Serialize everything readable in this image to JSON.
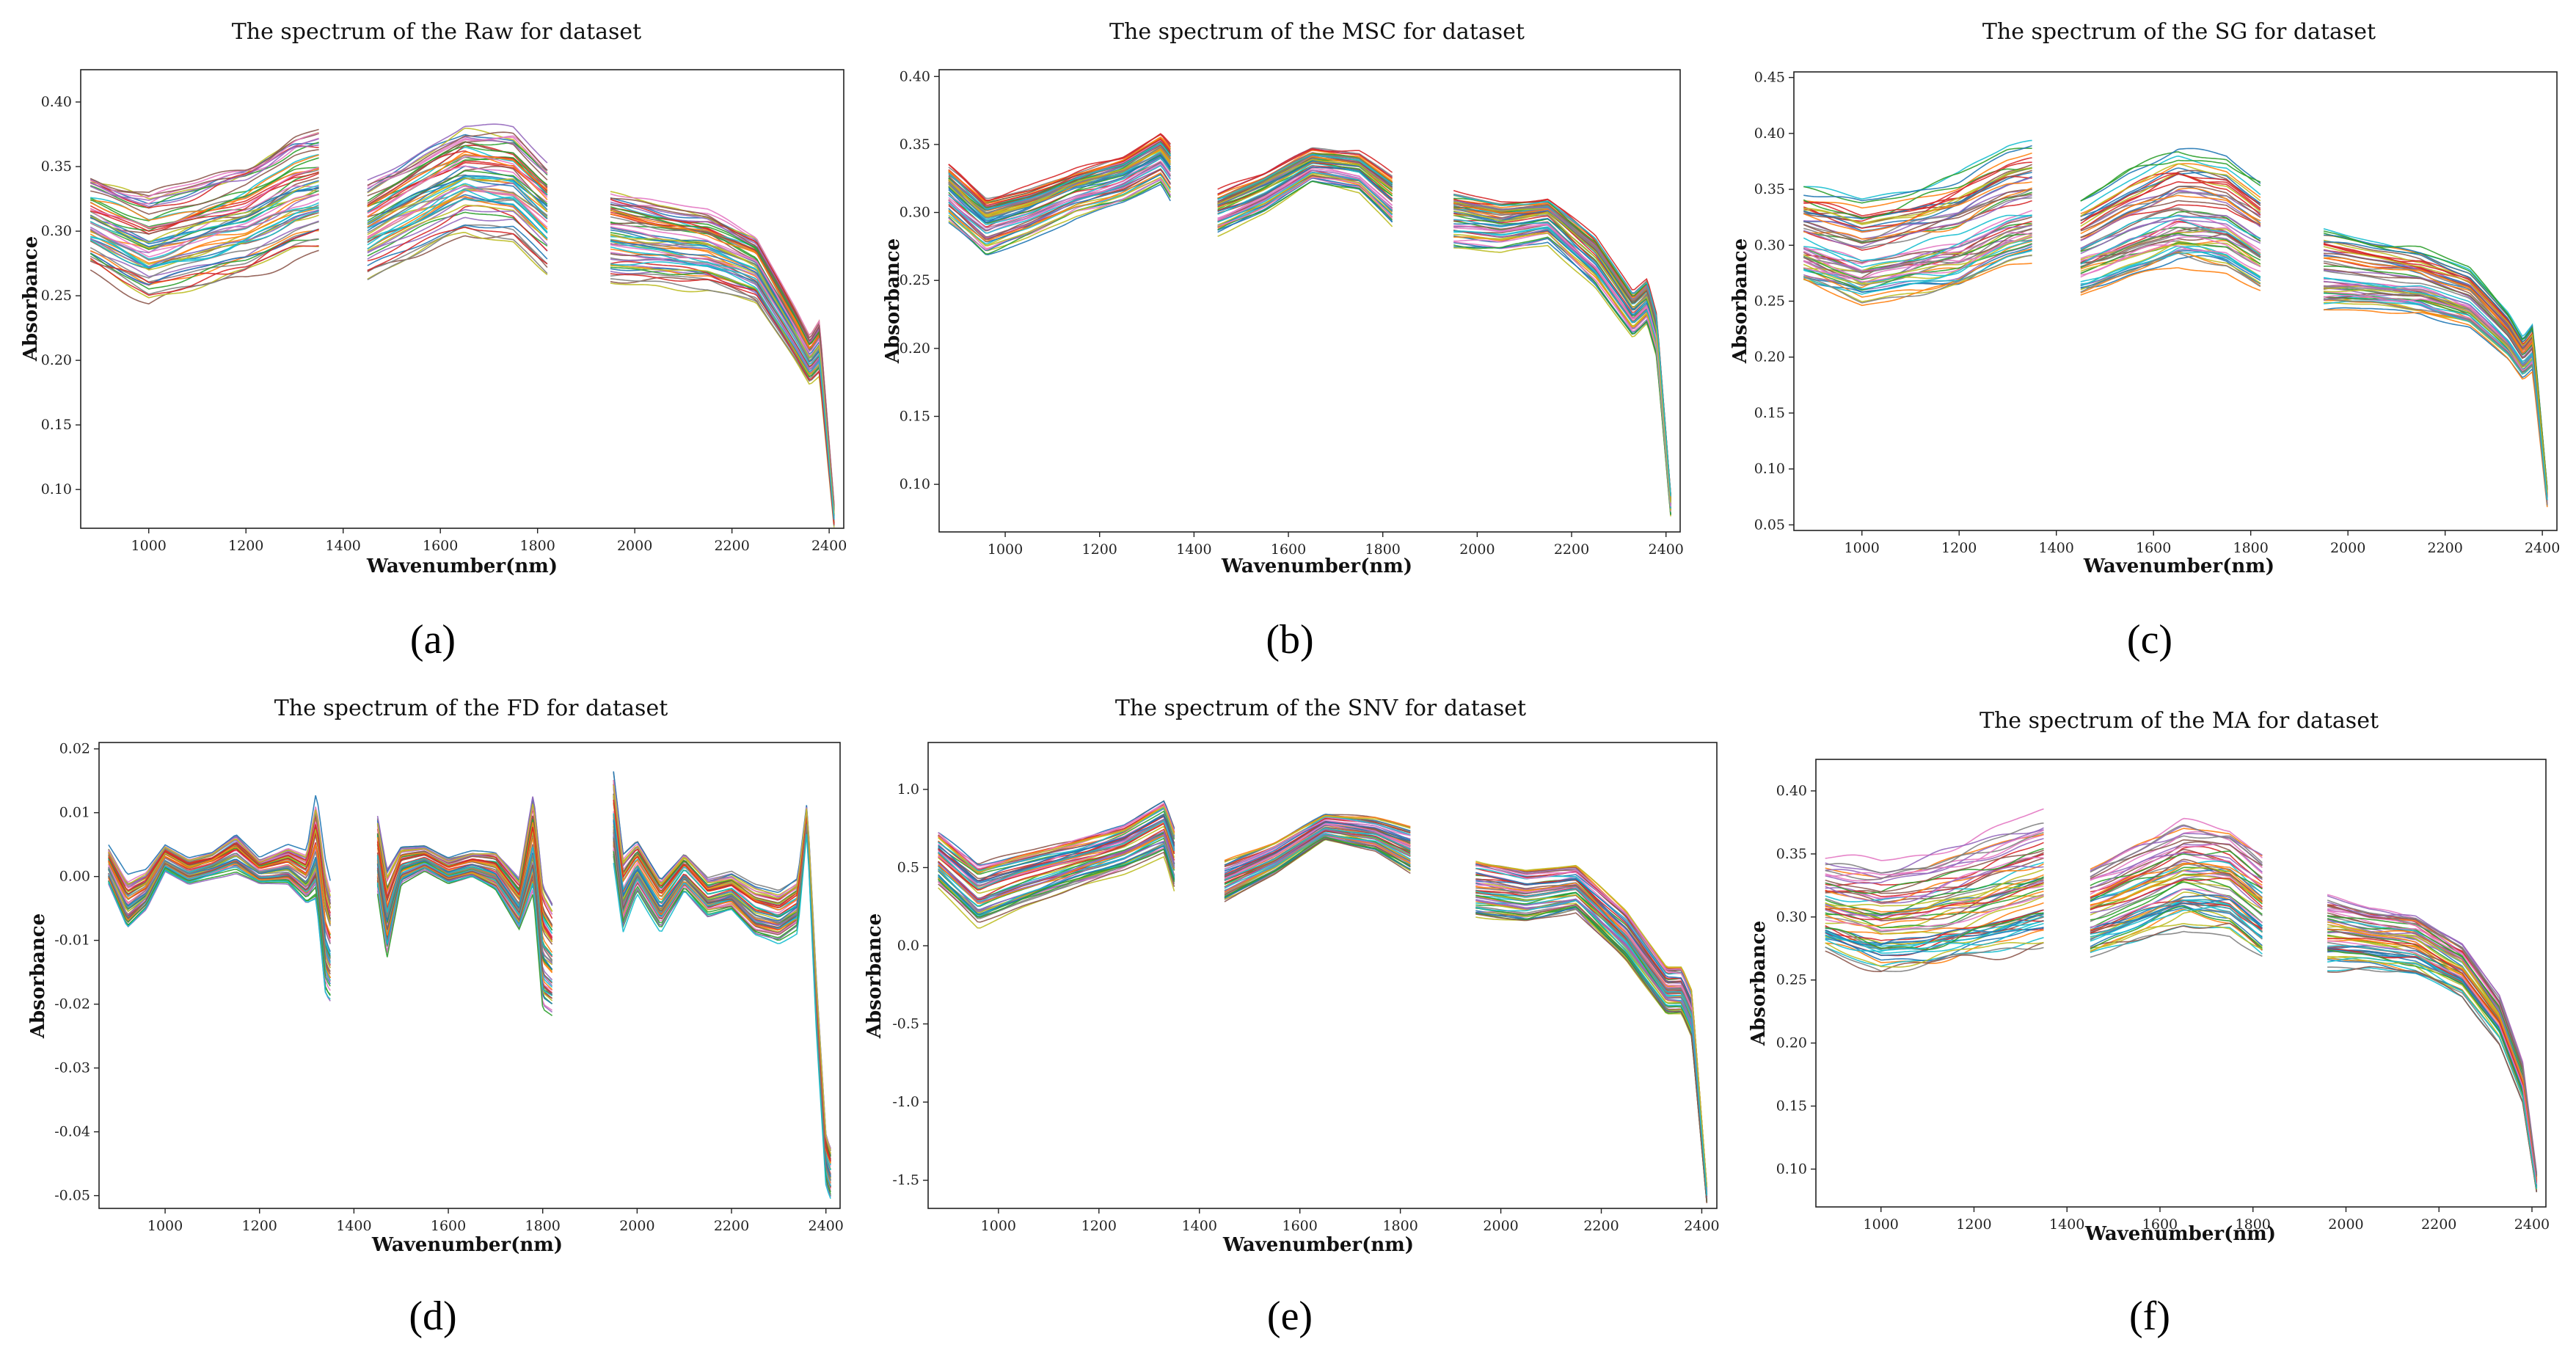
{
  "chart_data": [
    {
      "id": "a",
      "type": "line",
      "panel_label": "(a)",
      "title": "The spectrum of the Raw for dataset",
      "xlabel": "Wavenumber(nm)",
      "ylabel": "Absorbance",
      "xlim": [
        860,
        2430
      ],
      "ylim": [
        0.07,
        0.425
      ],
      "xticks": [
        1000,
        1200,
        1400,
        1600,
        1800,
        2000,
        2200,
        2400
      ],
      "yticks": [
        0.1,
        0.15,
        0.2,
        0.25,
        0.3,
        0.35,
        0.4
      ],
      "segments": [
        [
          880,
          1350
        ],
        [
          1450,
          1820
        ],
        [
          1950,
          2410
        ]
      ],
      "n_series": 60,
      "series_template": {
        "x": [
          880,
          1000,
          1100,
          1200,
          1300,
          1350,
          1450,
          1550,
          1650,
          1750,
          1820,
          1950,
          2050,
          2150,
          2250,
          2330,
          2360,
          2380,
          2410
        ],
        "y_center": [
          0.305,
          0.285,
          0.295,
          0.305,
          0.325,
          0.33,
          0.3,
          0.32,
          0.34,
          0.335,
          0.31,
          0.295,
          0.29,
          0.285,
          0.27,
          0.22,
          0.2,
          0.21,
          0.08
        ],
        "y_spread": [
          0.035,
          0.04,
          0.04,
          0.042,
          0.045,
          0.045,
          0.035,
          0.038,
          0.04,
          0.04,
          0.04,
          0.035,
          0.03,
          0.028,
          0.025,
          0.02,
          0.018,
          0.02,
          0.008
        ]
      }
    },
    {
      "id": "b",
      "type": "line",
      "panel_label": "(b)",
      "title": "The spectrum of the MSC for dataset",
      "xlabel": "Wavenumber(nm)",
      "ylabel": "Absorbance",
      "xlim": [
        860,
        2430
      ],
      "ylim": [
        0.065,
        0.405
      ],
      "xticks": [
        1000,
        1200,
        1400,
        1600,
        1800,
        2000,
        2200,
        2400
      ],
      "yticks": [
        0.1,
        0.15,
        0.2,
        0.25,
        0.3,
        0.35,
        0.4
      ],
      "segments": [
        [
          880,
          1350
        ],
        [
          1450,
          1820
        ],
        [
          1950,
          2410
        ]
      ],
      "n_series": 60,
      "series_template": {
        "x": [
          880,
          960,
          1050,
          1150,
          1250,
          1330,
          1350,
          1450,
          1550,
          1650,
          1750,
          1820,
          1950,
          2050,
          2150,
          2250,
          2330,
          2360,
          2380,
          2410
        ],
        "y_center": [
          0.315,
          0.29,
          0.3,
          0.315,
          0.325,
          0.34,
          0.33,
          0.3,
          0.315,
          0.335,
          0.33,
          0.31,
          0.295,
          0.29,
          0.295,
          0.265,
          0.225,
          0.235,
          0.21,
          0.085
        ],
        "y_spread": [
          0.02,
          0.02,
          0.018,
          0.016,
          0.016,
          0.018,
          0.02,
          0.015,
          0.014,
          0.012,
          0.014,
          0.018,
          0.02,
          0.018,
          0.016,
          0.018,
          0.016,
          0.016,
          0.016,
          0.008
        ]
      }
    },
    {
      "id": "c",
      "type": "line",
      "panel_label": "(c)",
      "title": "The spectrum of the SG for dataset",
      "xlabel": "Wavenumber(nm)",
      "ylabel": "Absorbance",
      "xlim": [
        860,
        2430
      ],
      "ylim": [
        0.045,
        0.455
      ],
      "xticks": [
        1000,
        1200,
        1400,
        1600,
        1800,
        2000,
        2200,
        2400
      ],
      "yticks": [
        0.05,
        0.1,
        0.15,
        0.2,
        0.25,
        0.3,
        0.35,
        0.4,
        0.45
      ],
      "segments": [
        [
          880,
          1350
        ],
        [
          1450,
          1820
        ],
        [
          1950,
          2410
        ]
      ],
      "n_series": 60,
      "series_template": {
        "x": [
          880,
          1000,
          1100,
          1200,
          1300,
          1350,
          1450,
          1550,
          1650,
          1750,
          1820,
          1950,
          2050,
          2150,
          2250,
          2330,
          2360,
          2380,
          2410
        ],
        "y_center": [
          0.31,
          0.295,
          0.305,
          0.315,
          0.335,
          0.34,
          0.3,
          0.32,
          0.335,
          0.33,
          0.31,
          0.28,
          0.275,
          0.27,
          0.255,
          0.22,
          0.2,
          0.21,
          0.075
        ],
        "y_spread": [
          0.04,
          0.045,
          0.045,
          0.048,
          0.05,
          0.05,
          0.04,
          0.045,
          0.048,
          0.048,
          0.045,
          0.035,
          0.03,
          0.028,
          0.025,
          0.02,
          0.018,
          0.02,
          0.008
        ]
      }
    },
    {
      "id": "d",
      "type": "line",
      "panel_label": "(d)",
      "title": "The spectrum of the FD for dataset",
      "xlabel": "Wavenumber(nm)",
      "ylabel": "Absorbance",
      "xlim": [
        860,
        2430
      ],
      "ylim": [
        -0.052,
        0.021
      ],
      "xticks": [
        1000,
        1200,
        1400,
        1600,
        1800,
        2000,
        2200,
        2400
      ],
      "yticks": [
        -0.05,
        -0.04,
        -0.03,
        -0.02,
        -0.01,
        0.0,
        0.01,
        0.02
      ],
      "segments": [
        [
          880,
          1350
        ],
        [
          1450,
          1820
        ],
        [
          1950,
          2410
        ]
      ],
      "n_series": 60,
      "series_template": {
        "x": [
          880,
          920,
          960,
          1000,
          1050,
          1100,
          1150,
          1200,
          1260,
          1300,
          1320,
          1340,
          1350,
          1450,
          1470,
          1500,
          1550,
          1600,
          1650,
          1700,
          1750,
          1780,
          1800,
          1820,
          1950,
          1970,
          2000,
          2050,
          2100,
          2150,
          2200,
          2250,
          2300,
          2340,
          2360,
          2380,
          2400,
          2410
        ],
        "y_center": [
          0.002,
          -0.004,
          -0.002,
          0.003,
          0.001,
          0.002,
          0.004,
          0.001,
          0.002,
          0.0,
          0.005,
          -0.008,
          -0.01,
          0.004,
          -0.005,
          0.002,
          0.003,
          0.001,
          0.002,
          0.001,
          -0.004,
          0.006,
          -0.01,
          -0.012,
          0.01,
          -0.002,
          0.002,
          -0.004,
          0.001,
          -0.003,
          -0.002,
          -0.005,
          -0.006,
          -0.004,
          0.01,
          -0.02,
          -0.044,
          -0.046
        ],
        "y_spread": [
          0.003,
          0.004,
          0.003,
          0.002,
          0.002,
          0.002,
          0.003,
          0.002,
          0.003,
          0.004,
          0.008,
          0.01,
          0.009,
          0.006,
          0.007,
          0.003,
          0.002,
          0.002,
          0.002,
          0.003,
          0.004,
          0.008,
          0.01,
          0.009,
          0.007,
          0.006,
          0.004,
          0.004,
          0.003,
          0.003,
          0.003,
          0.004,
          0.004,
          0.004,
          0.002,
          0.004,
          0.004,
          0.004
        ]
      }
    },
    {
      "id": "e",
      "type": "line",
      "panel_label": "(e)",
      "title": "The spectrum of the SNV for dataset",
      "xlabel": "Wavenumber(nm)",
      "ylabel": "Absorbance",
      "xlim": [
        860,
        2430
      ],
      "ylim": [
        -1.68,
        1.3
      ],
      "xticks": [
        1000,
        1200,
        1400,
        1600,
        1800,
        2000,
        2200,
        2400
      ],
      "yticks": [
        -1.5,
        -1.0,
        -0.5,
        0.0,
        0.5,
        1.0
      ],
      "segments": [
        [
          880,
          1350
        ],
        [
          1450,
          1820
        ],
        [
          1950,
          2410
        ]
      ],
      "n_series": 60,
      "series_template": {
        "x": [
          880,
          960,
          1050,
          1150,
          1250,
          1330,
          1350,
          1450,
          1550,
          1650,
          1750,
          1820,
          1950,
          2050,
          2150,
          2250,
          2330,
          2360,
          2380,
          2410
        ],
        "y_center": [
          0.55,
          0.32,
          0.42,
          0.52,
          0.62,
          0.75,
          0.55,
          0.4,
          0.55,
          0.75,
          0.7,
          0.6,
          0.35,
          0.3,
          0.35,
          0.05,
          -0.3,
          -0.3,
          -0.45,
          -1.6
        ],
        "y_spread": [
          0.16,
          0.18,
          0.16,
          0.14,
          0.14,
          0.16,
          0.18,
          0.12,
          0.1,
          0.08,
          0.1,
          0.14,
          0.18,
          0.16,
          0.14,
          0.16,
          0.15,
          0.15,
          0.15,
          0.05
        ]
      }
    },
    {
      "id": "f",
      "type": "line",
      "panel_label": "(f)",
      "title": "The spectrum of the MA for dataset",
      "xlabel": "Wavenumber(nm)",
      "ylabel": "Absorbance",
      "xlim": [
        860,
        2430
      ],
      "ylim": [
        0.07,
        0.425
      ],
      "xticks": [
        1000,
        1200,
        1400,
        1600,
        1800,
        2000,
        2200,
        2400
      ],
      "yticks": [
        0.1,
        0.15,
        0.2,
        0.25,
        0.3,
        0.35,
        0.4
      ],
      "segments": [
        [
          880,
          1350
        ],
        [
          1450,
          1820
        ],
        [
          1960,
          2410
        ]
      ],
      "n_series": 60,
      "series_template": {
        "x": [
          880,
          1000,
          1100,
          1200,
          1300,
          1350,
          1450,
          1550,
          1650,
          1750,
          1820,
          1960,
          2050,
          2150,
          2250,
          2330,
          2380,
          2410
        ],
        "y_center": [
          0.31,
          0.3,
          0.305,
          0.315,
          0.325,
          0.33,
          0.305,
          0.32,
          0.335,
          0.33,
          0.31,
          0.29,
          0.285,
          0.28,
          0.26,
          0.22,
          0.17,
          0.09
        ],
        "y_spread": [
          0.035,
          0.04,
          0.042,
          0.045,
          0.048,
          0.048,
          0.035,
          0.038,
          0.04,
          0.04,
          0.04,
          0.03,
          0.025,
          0.025,
          0.022,
          0.02,
          0.016,
          0.008
        ]
      }
    }
  ],
  "palette": [
    "#1f77b4",
    "#ff7f0e",
    "#2ca02c",
    "#d62728",
    "#9467bd",
    "#8c564b",
    "#e377c2",
    "#7f7f7f",
    "#bcbd22",
    "#17becf"
  ]
}
